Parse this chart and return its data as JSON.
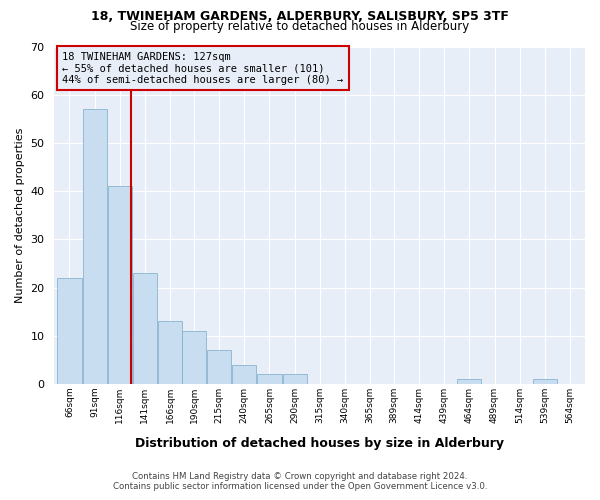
{
  "title1": "18, TWINEHAM GARDENS, ALDERBURY, SALISBURY, SP5 3TF",
  "title2": "Size of property relative to detached houses in Alderbury",
  "xlabel": "Distribution of detached houses by size in Alderbury",
  "ylabel": "Number of detached properties",
  "footer1": "Contains HM Land Registry data © Crown copyright and database right 2024.",
  "footer2": "Contains public sector information licensed under the Open Government Licence v3.0.",
  "annotation_line1": "18 TWINEHAM GARDENS: 127sqm",
  "annotation_line2": "← 55% of detached houses are smaller (101)",
  "annotation_line3": "44% of semi-detached houses are larger (80) →",
  "bar_color": "#c8ddef",
  "bar_edge_color": "#7aaac8",
  "ref_line_color": "#cc0000",
  "ref_line_x": 127,
  "categories": [
    "66sqm",
    "91sqm",
    "116sqm",
    "141sqm",
    "166sqm",
    "190sqm",
    "215sqm",
    "240sqm",
    "265sqm",
    "290sqm",
    "315sqm",
    "340sqm",
    "365sqm",
    "389sqm",
    "414sqm",
    "439sqm",
    "464sqm",
    "489sqm",
    "514sqm",
    "539sqm",
    "564sqm"
  ],
  "bin_edges": [
    53,
    78,
    103,
    128,
    153,
    177,
    202,
    227,
    252,
    277,
    302,
    327,
    352,
    376,
    401,
    426,
    451,
    476,
    501,
    526,
    551,
    576
  ],
  "tick_positions": [
    66,
    91,
    116,
    141,
    166,
    190,
    215,
    240,
    265,
    290,
    315,
    340,
    365,
    389,
    414,
    439,
    464,
    489,
    514,
    539,
    564
  ],
  "values": [
    22,
    57,
    41,
    23,
    13,
    11,
    7,
    4,
    2,
    2,
    0,
    0,
    0,
    0,
    0,
    0,
    1,
    0,
    0,
    1,
    0
  ],
  "ylim": [
    0,
    70
  ],
  "yticks": [
    0,
    10,
    20,
    30,
    40,
    50,
    60,
    70
  ],
  "bg_color": "#ffffff",
  "plot_bg_color": "#e8eef8",
  "grid_color": "#ffffff",
  "box_color": "#cc0000",
  "box_bg_color": "#e8eef8",
  "footer_color": "#444444"
}
